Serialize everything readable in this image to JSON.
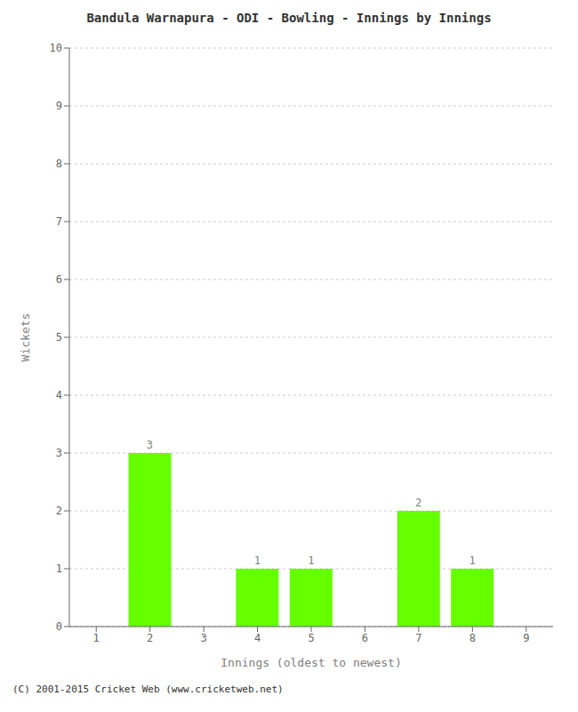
{
  "chart_data": {
    "type": "bar",
    "title": "Bandula Warnapura - ODI - Bowling - Innings by Innings",
    "xlabel": "Innings (oldest to newest)",
    "ylabel": "Wickets",
    "categories": [
      1,
      2,
      3,
      4,
      5,
      6,
      7,
      8,
      9
    ],
    "values": [
      0,
      3,
      0,
      1,
      1,
      0,
      2,
      1,
      0
    ],
    "color": "#66ff00",
    "ylim": [
      0,
      10
    ],
    "yticks": [
      0,
      1,
      2,
      3,
      4,
      5,
      6,
      7,
      8,
      9,
      10
    ],
    "grid": true,
    "data_labels": true,
    "footer": "(C) 2001-2015 Cricket Web (www.cricketweb.net)"
  }
}
